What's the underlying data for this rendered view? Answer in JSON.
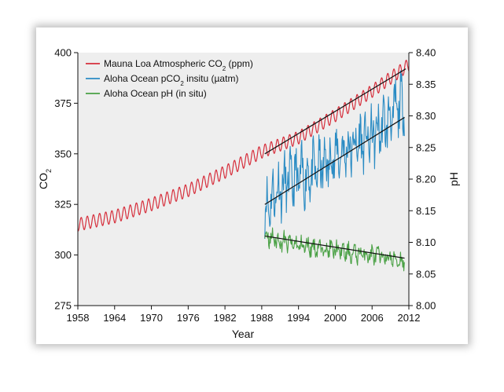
{
  "chart_data": {
    "type": "line",
    "xlabel": "Year",
    "ylabel_left": "CO",
    "ylabel_left_sub": "2",
    "ylabel_right": "pH",
    "xlim": [
      1958,
      2012
    ],
    "ylim_left": [
      275,
      400
    ],
    "ylim_right": [
      8.0,
      8.4
    ],
    "x_ticks": [
      "1958",
      "1964",
      "1970",
      "1976",
      "1982",
      "1988",
      "1994",
      "2000",
      "2006",
      "2012"
    ],
    "y_ticks_left": [
      "275",
      "300",
      "325",
      "350",
      "375",
      "400"
    ],
    "y_ticks_right": [
      "8.00",
      "8.05",
      "8.10",
      "8.15",
      "8.20",
      "8.25",
      "8.30",
      "8.35",
      "8.40"
    ],
    "legend": [
      {
        "pre": "Mauna Loa Atmospheric CO",
        "sub": "2",
        "post": " (ppm)",
        "color": "#d62f3c"
      },
      {
        "pre": "Aloha Ocean pCO",
        "sub": "2",
        "post": " insitu (µatm)",
        "color": "#2b8cc4"
      },
      {
        "pre": "Aloha Ocean pH (in situ)",
        "sub": "",
        "post": "",
        "color": "#4aa145"
      }
    ],
    "series": [
      {
        "name": "Mauna Loa Atmospheric CO2 (ppm)",
        "axis": "left",
        "color": "#d62f3c",
        "x": [
          1958,
          1964,
          1970,
          1976,
          1982,
          1988,
          1994,
          2000,
          2006,
          2012
        ],
        "y": [
          315,
          319,
          325,
          332,
          341,
          351,
          358,
          369,
          381,
          394
        ],
        "seasonal_amplitude": 3.2
      },
      {
        "name": "Aloha Ocean pCO2 insitu (µatm)",
        "axis": "left",
        "color": "#2b8cc4",
        "x": [
          1988.5,
          1990,
          1992,
          1994,
          1996,
          1998,
          2000,
          2002,
          2004,
          2006,
          2008,
          2010,
          2011.3
        ],
        "y": [
          322,
          330,
          336,
          338,
          340,
          344,
          349,
          352,
          356,
          358,
          364,
          372,
          376
        ],
        "noise_amplitude": 14
      },
      {
        "name": "Aloha Ocean pH (in situ)",
        "axis": "right",
        "color": "#4aa145",
        "x": [
          1988.5,
          1990,
          1992,
          1994,
          1996,
          1998,
          2000,
          2002,
          2004,
          2006,
          2008,
          2010,
          2011.3
        ],
        "y": [
          8.11,
          8.105,
          8.1,
          8.095,
          8.093,
          8.09,
          8.088,
          8.083,
          8.082,
          8.08,
          8.077,
          8.072,
          8.07
        ],
        "noise_amplitude": 0.015
      }
    ],
    "trend_lines": [
      {
        "name": "Atmospheric CO2 trend",
        "axis": "left",
        "x": [
          1988.5,
          2011.5
        ],
        "y": [
          350,
          392
        ]
      },
      {
        "name": "Ocean pCO2 trend",
        "axis": "left",
        "x": [
          1988.5,
          2011.3
        ],
        "y": [
          325,
          368
        ]
      },
      {
        "name": "Ocean pH trend",
        "axis": "right",
        "x": [
          1988.5,
          2011.3
        ],
        "y": [
          8.11,
          8.075
        ]
      }
    ]
  },
  "colors": {
    "plot_background": "#eeeeee",
    "trend_line": "#111111"
  }
}
